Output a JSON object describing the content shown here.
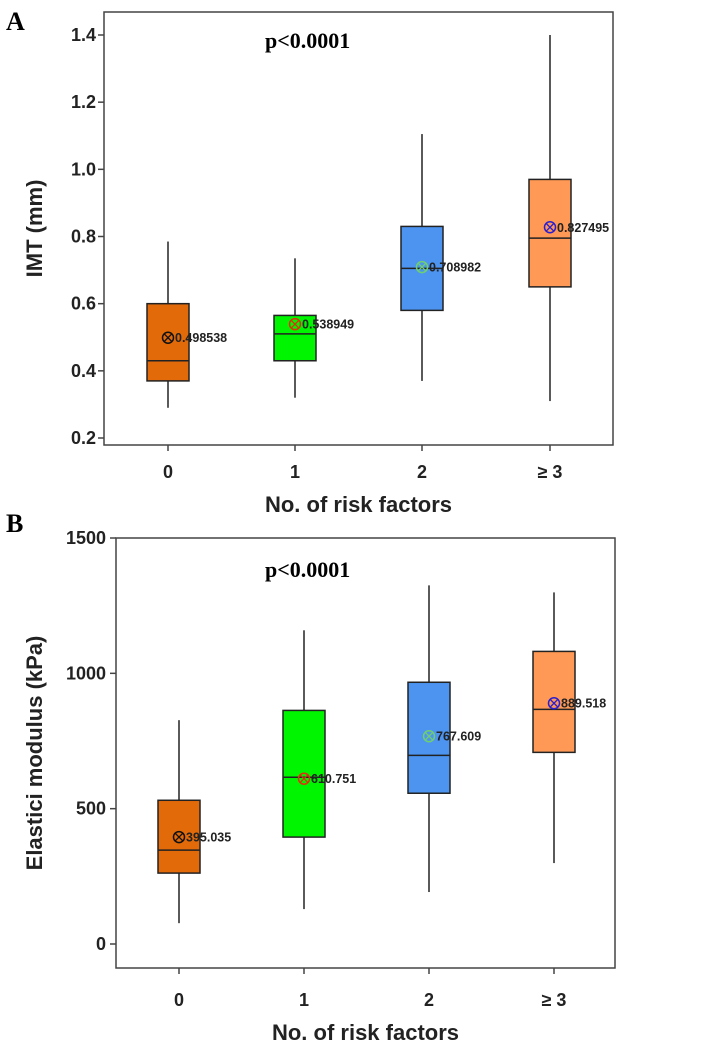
{
  "chart_data": [
    {
      "type": "box",
      "panel_label": "A",
      "annotation": "p<0.0001",
      "xlabel": "No. of risk factors",
      "ylabel": "IMT (mm)",
      "ylim": [
        0.2,
        1.4
      ],
      "yticks": [
        0.2,
        0.4,
        0.6,
        0.8,
        1.0,
        1.2,
        1.4
      ],
      "ytick_labels": [
        "0.2",
        "0.4",
        "0.6",
        "0.8",
        "1.0",
        "1.2",
        "1.4"
      ],
      "categories": [
        "0",
        "1",
        "2",
        "≥ 3"
      ],
      "boxes": [
        {
          "min": 0.29,
          "q1": 0.37,
          "median": 0.43,
          "q3": 0.6,
          "max": 0.785,
          "mean": 0.498538,
          "mean_label": "0.498538",
          "fill": "#E36A09",
          "mean_color": "#111111"
        },
        {
          "min": 0.32,
          "q1": 0.43,
          "median": 0.51,
          "q3": 0.565,
          "max": 0.735,
          "mean": 0.538949,
          "mean_label": "0.538949",
          "fill": "#00F500",
          "mean_color": "#E03010"
        },
        {
          "min": 0.37,
          "q1": 0.58,
          "median": 0.705,
          "q3": 0.83,
          "max": 1.105,
          "mean": 0.708982,
          "mean_label": "0.708982",
          "fill": "#4C94F0",
          "mean_color": "#6FCF6F"
        },
        {
          "min": 0.31,
          "q1": 0.65,
          "median": 0.795,
          "q3": 0.97,
          "max": 1.4,
          "mean": 0.827495,
          "mean_label": "0.827495",
          "fill": "#FF9955",
          "mean_color": "#2A1FD0"
        }
      ]
    },
    {
      "type": "box",
      "panel_label": "B",
      "annotation": "p<0.0001",
      "xlabel": "No. of risk factors",
      "ylabel": "Elastici modulus (kPa)",
      "ylim": [
        -120,
        1500
      ],
      "yticks": [
        0,
        500,
        1000,
        1500
      ],
      "ytick_labels": [
        "0",
        "500",
        "1000",
        "1500"
      ],
      "categories": [
        "0",
        "1",
        "2",
        "≥ 3"
      ],
      "boxes": [
        {
          "min": 77,
          "q1": 262,
          "median": 347,
          "q3": 531,
          "max": 827,
          "mean": 395.035,
          "mean_label": "395.035",
          "fill": "#E36A09",
          "mean_color": "#111111"
        },
        {
          "min": 129,
          "q1": 395,
          "median": 616,
          "q3": 863,
          "max": 1159,
          "mean": 610.751,
          "mean_label": "610.751",
          "fill": "#00F500",
          "mean_color": "#E03010"
        },
        {
          "min": 192,
          "q1": 557,
          "median": 697,
          "q3": 967,
          "max": 1325,
          "mean": 767.609,
          "mean_label": "767.609",
          "fill": "#4C94F0",
          "mean_color": "#6FCF6F"
        },
        {
          "min": 299,
          "q1": 708,
          "median": 867,
          "q3": 1081,
          "max": 1299,
          "mean": 889.518,
          "mean_label": "889.518",
          "fill": "#FF9955",
          "mean_color": "#2A1FD0"
        }
      ]
    }
  ]
}
